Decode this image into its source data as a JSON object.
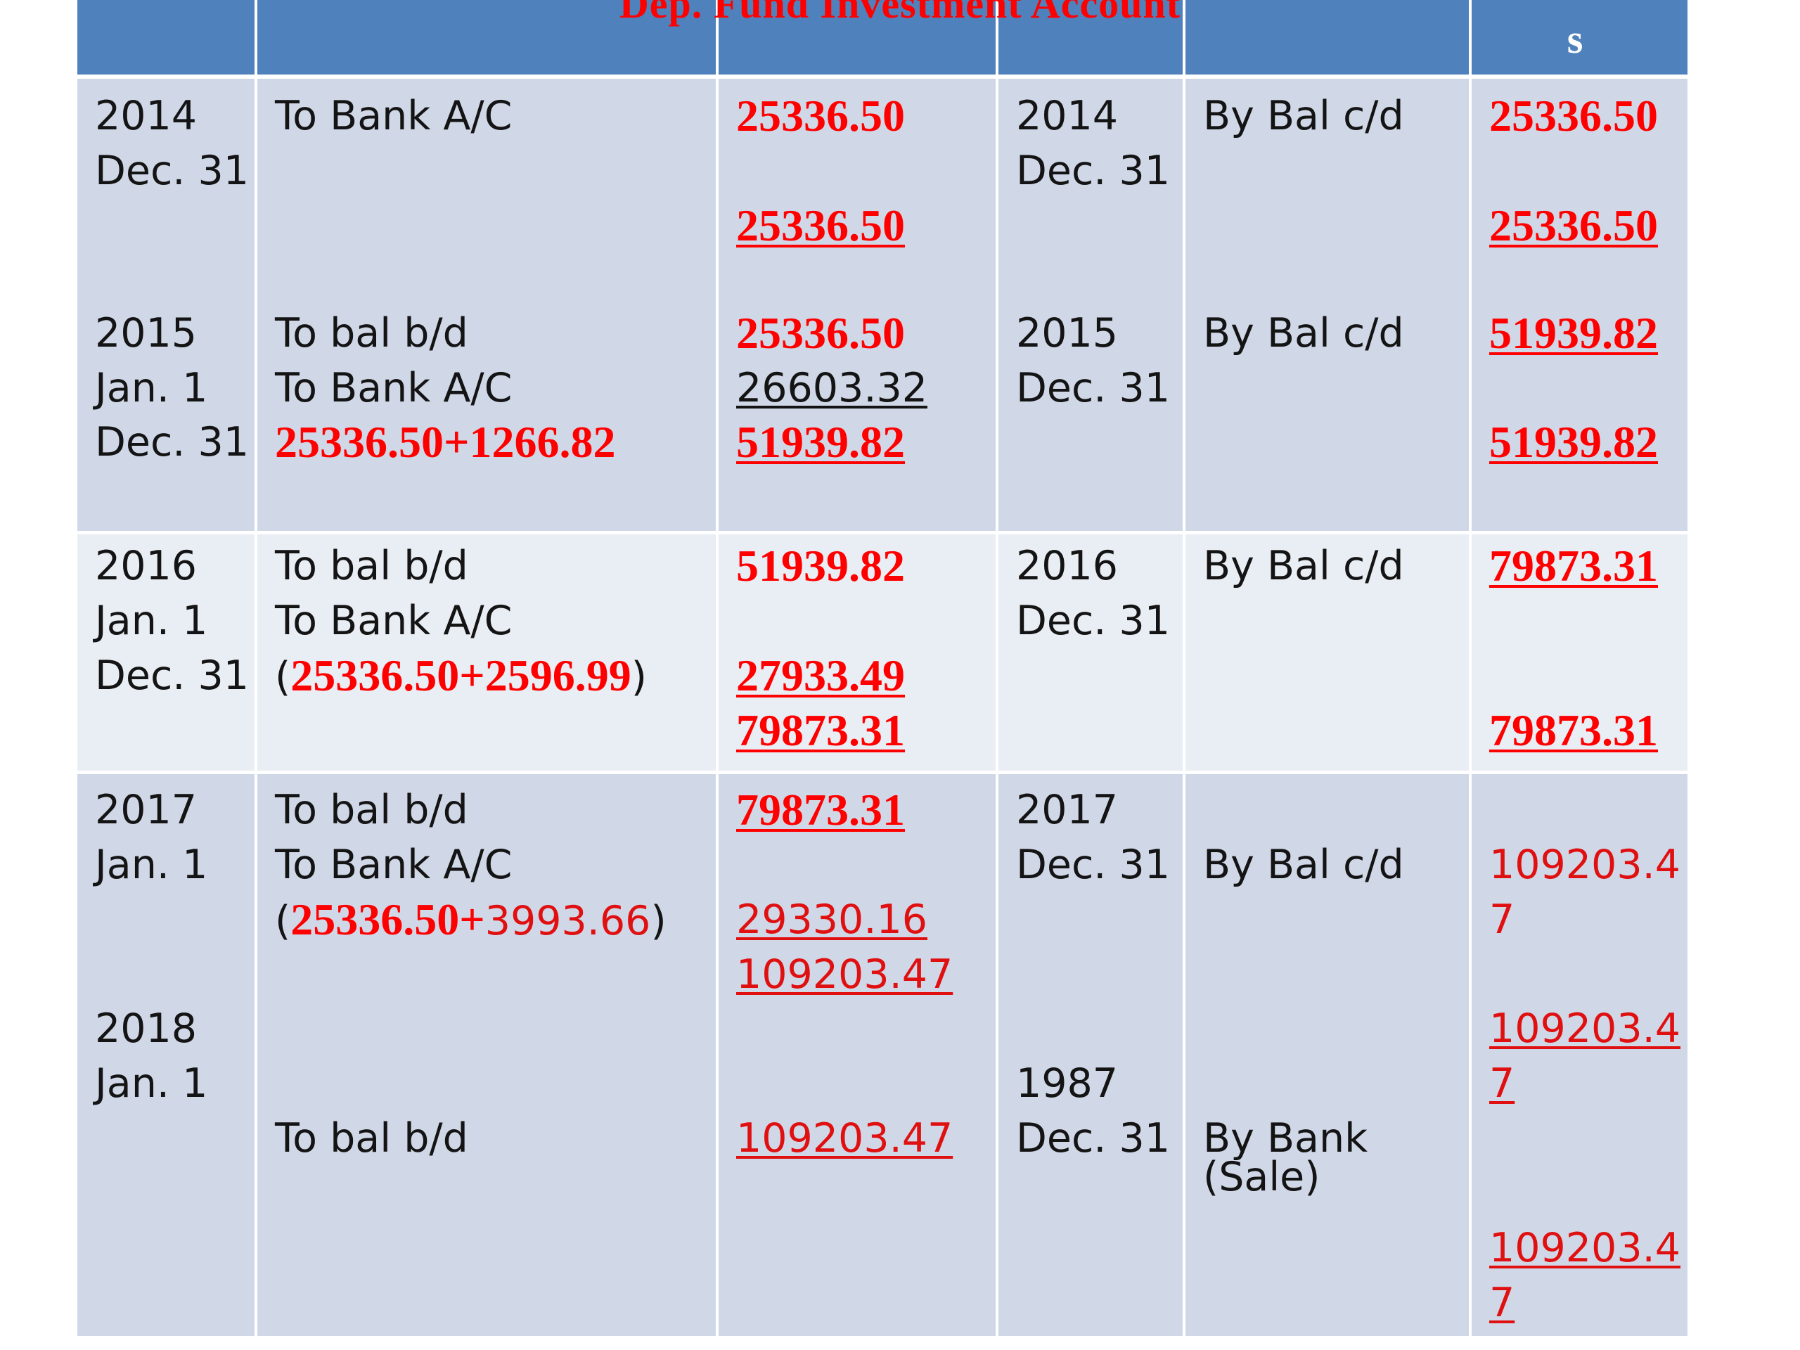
{
  "title": "Dep. Fund Investment Account",
  "header_s": "s",
  "sections": [
    {
      "debit": {
        "dates": [
          "2014",
          "Dec. 31"
        ],
        "particulars": [
          "To Bank A/C"
        ],
        "amounts": [
          "25336.50",
          "25336.50"
        ]
      },
      "credit": {
        "dates": [
          "2014",
          "Dec. 31"
        ],
        "particulars": [
          "By Bal c/d"
        ],
        "amounts": [
          "25336.50",
          "25336.50"
        ]
      }
    },
    {
      "debit": {
        "dates": [
          "2015",
          "Jan. 1",
          "Dec. 31"
        ],
        "particulars": [
          "To bal b/d",
          "To Bank A/C",
          "25336.50+1266.82"
        ],
        "amounts": [
          "25336.50",
          "26603.32",
          "51939.82"
        ]
      },
      "credit": {
        "dates": [
          "2015",
          "Dec. 31"
        ],
        "particulars": [
          "By Bal c/d"
        ],
        "amounts": [
          "51939.82",
          "51939.82"
        ]
      }
    },
    {
      "debit": {
        "dates": [
          "2016",
          "Jan. 1",
          "Dec. 31"
        ],
        "particulars": [
          "To bal b/d",
          "To Bank A/C",
          "25336.50+2596.99"
        ],
        "amounts": [
          "51939.82",
          "27933.49",
          "79873.31"
        ]
      },
      "credit": {
        "dates": [
          "2016",
          "Dec. 31"
        ],
        "particulars": [
          "By Bal c/d"
        ],
        "amounts": [
          "79873.31",
          "79873.31"
        ]
      }
    },
    {
      "debit": {
        "dates": [
          "2017",
          "Jan. 1",
          "2018",
          "Jan. 1"
        ],
        "particulars": [
          "To bal b/d",
          "To Bank A/C",
          "25336.50+",
          "3993.66",
          "To bal b/d"
        ],
        "amounts": [
          "79873.31",
          "29330.16",
          "109203.47",
          "109203.47"
        ]
      },
      "credit": {
        "dates": [
          "2017",
          "Dec. 31",
          "1987",
          "Dec. 31"
        ],
        "particulars": [
          "By Bal c/d",
          "By Bank",
          "(Sale)"
        ],
        "amounts": [
          "109203.4",
          "7",
          "109203.4",
          "7",
          "109203.4",
          "7"
        ]
      }
    }
  ]
}
